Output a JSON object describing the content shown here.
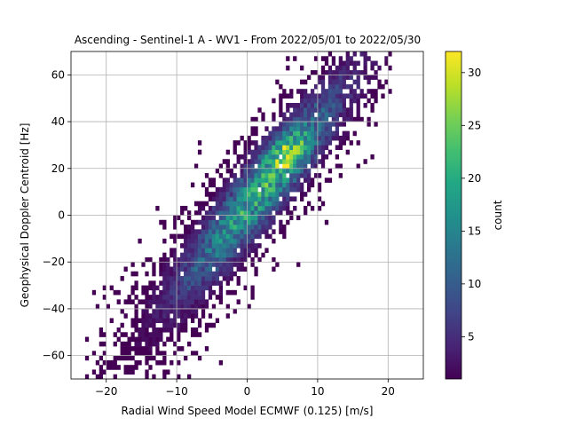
{
  "chart_data": {
    "type": "heatmap",
    "title": "Ascending - Sentinel-1 A - WV1 - From 2022/05/01 to 2022/05/30",
    "xlabel": "Radial Wind Speed Model ECMWF (0.125) [m/s]",
    "ylabel": "Geophysical Doppler Centroid [Hz]",
    "xlim": [
      -25,
      25
    ],
    "ylim": [
      -70,
      70
    ],
    "xticks": [
      -20,
      -10,
      0,
      10,
      20
    ],
    "yticks": [
      -60,
      -40,
      -20,
      0,
      20,
      40,
      60
    ],
    "grid": true,
    "colormap": "viridis",
    "colorbar": {
      "label": "count",
      "min": 1,
      "max": 32,
      "ticks": [
        5,
        10,
        15,
        20,
        25,
        30
      ]
    },
    "density_model": {
      "description_of_distribution": "2D histogram; points concentrated along a line y = 3.5*x + 4 with spread ~14 Hz across, extending x from about -23 to 20",
      "slope": 3.5,
      "intercept": 4,
      "peak_count": 32,
      "peak_location": [
        5.5,
        27
      ],
      "bin_size_x": 0.5,
      "bin_size_y": 2.0
    },
    "colors": {
      "viridis_low": "#440154",
      "viridis_mid": "#21918c",
      "viridis_high": "#fde725"
    }
  }
}
